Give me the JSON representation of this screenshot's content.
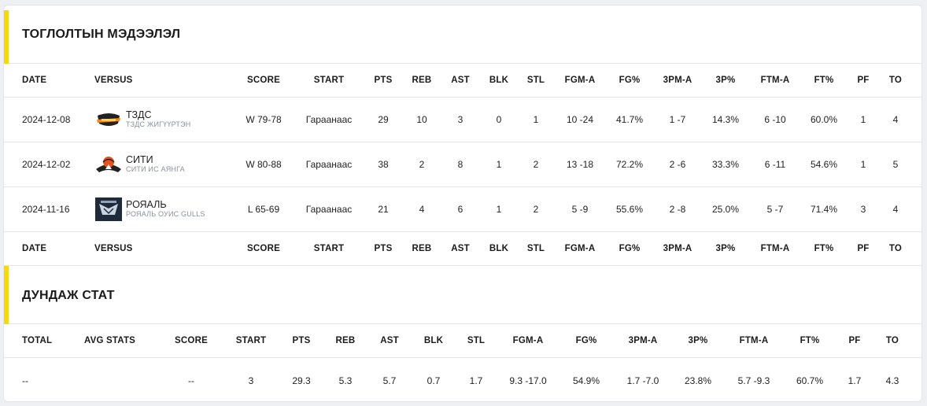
{
  "game_log": {
    "title": "ТОГЛОЛТЫН МЭДЭЭЛЭЛ",
    "columns": [
      "DATE",
      "VERSUS",
      "SCORE",
      "START",
      "PTS",
      "REB",
      "AST",
      "BLK",
      "STL",
      "FGM-A",
      "FG%",
      "3PM-A",
      "3P%",
      "FTM-A",
      "FT%",
      "PF",
      "TO"
    ],
    "rows": [
      {
        "date": "2024-12-08",
        "team": "ТЗДС",
        "team_full": "ТЗДС ЖИГҮҮРТЭН",
        "logo": "tzds-logo",
        "score": "W 79-78",
        "start": "Гараанаас",
        "pts": "29",
        "reb": "10",
        "ast": "3",
        "blk": "0",
        "stl": "1",
        "fgma": "10 -24",
        "fgp": "41.7%",
        "tpma": "1 -7",
        "tpp": "14.3%",
        "ftma": "6 -10",
        "ftp": "60.0%",
        "pf": "1",
        "to": "4"
      },
      {
        "date": "2024-12-02",
        "team": "СИТИ",
        "team_full": "СИТИ ИС АЯНГА",
        "logo": "city-logo",
        "score": "W 80-88",
        "start": "Гараанаас",
        "pts": "38",
        "reb": "2",
        "ast": "8",
        "blk": "1",
        "stl": "2",
        "fgma": "13 -18",
        "fgp": "72.2%",
        "tpma": "2 -6",
        "tpp": "33.3%",
        "ftma": "6 -11",
        "ftp": "54.6%",
        "pf": "1",
        "to": "5"
      },
      {
        "date": "2024-11-16",
        "team": "РОЯАЛЬ",
        "team_full": "РОЯАЛЬ ОУИС GULLS",
        "logo": "royal-logo",
        "score": "L 65-69",
        "start": "Гараанаас",
        "pts": "21",
        "reb": "4",
        "ast": "6",
        "blk": "1",
        "stl": "2",
        "fgma": "5 -9",
        "fgp": "55.6%",
        "tpma": "2 -8",
        "tpp": "25.0%",
        "ftma": "5 -7",
        "ftp": "71.4%",
        "pf": "3",
        "to": "4"
      }
    ]
  },
  "averages": {
    "title": "ДУНДАЖ СТАТ",
    "columns": [
      "TOTAL",
      "AVG STATS",
      "SCORE",
      "START",
      "PTS",
      "REB",
      "AST",
      "BLK",
      "STL",
      "FGM-A",
      "FG%",
      "3PM-A",
      "3P%",
      "FTM-A",
      "FT%",
      "PF",
      "TO"
    ],
    "values": [
      "--",
      "",
      "--",
      "3",
      "29.3",
      "5.3",
      "5.7",
      "0.7",
      "1.7",
      "9.3 -17.0",
      "54.9%",
      "1.7 -7.0",
      "23.8%",
      "5.7 -9.3",
      "60.7%",
      "1.7",
      "4.3"
    ]
  },
  "colors": {
    "accent": "#f5d90a",
    "border": "#e4e6ea",
    "background": "#eef0f3"
  }
}
